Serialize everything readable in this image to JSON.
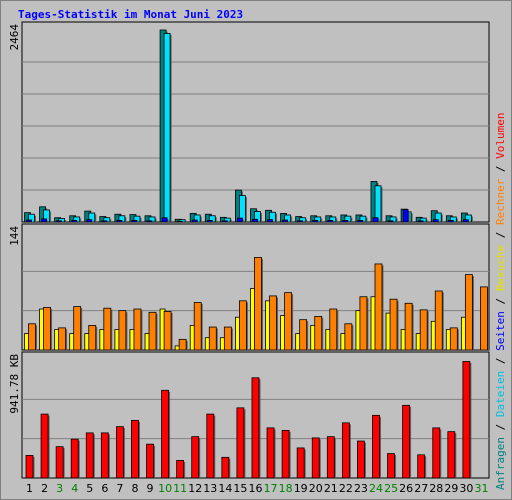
{
  "title": "Tages-Statistik im Monat Juni 2023",
  "colors": {
    "background": "#c0c0c0",
    "grid": "#808080",
    "anfragen": "#008080",
    "dateien": "#00e0ff",
    "seiten": "#0000ff",
    "besuche": "#ffff00",
    "rechner": "#ff8000",
    "volumen": "#ff0000",
    "title": "#0000ff",
    "weekend_label": "#008000",
    "weekday_label": "#000000"
  },
  "legend": {
    "top_right": [
      {
        "text": "Anfragen",
        "color": "#008080"
      },
      {
        "text": " / ",
        "color": "#000000"
      },
      {
        "text": "Dateien",
        "color": "#00c0e0"
      },
      {
        "text": " / ",
        "color": "#000000"
      },
      {
        "text": "Seiten",
        "color": "#0000ff"
      },
      {
        "text": " / ",
        "color": "#000000"
      },
      {
        "text": "Besuche",
        "color": "#e0e000"
      },
      {
        "text": " / ",
        "color": "#000000"
      },
      {
        "text": "Rechner",
        "color": "#ff8000"
      },
      {
        "text": " / ",
        "color": "#000000"
      },
      {
        "text": "Volumen",
        "color": "#ff0000"
      }
    ]
  },
  "chart_data": [
    {
      "type": "bar",
      "panel": "hits",
      "ymax_label": "2464",
      "ymax": 2464,
      "x": [
        1,
        2,
        3,
        4,
        5,
        6,
        7,
        8,
        9,
        10,
        11,
        12,
        13,
        14,
        15,
        16,
        17,
        18,
        19,
        20,
        21,
        22,
        23,
        24,
        25,
        26,
        27,
        28,
        29,
        30,
        31
      ],
      "weekend": [
        3,
        4,
        10,
        11,
        17,
        18,
        24,
        25,
        31
      ],
      "series": [
        {
          "name": "Anfragen",
          "values": [
            120,
            195,
            55,
            80,
            140,
            70,
            100,
            95,
            80,
            2464,
            35,
            110,
            100,
            60,
            410,
            170,
            150,
            110,
            70,
            80,
            80,
            90,
            90,
            520,
            80,
            165,
            60,
            145,
            80,
            115,
            0
          ]
        },
        {
          "name": "Dateien",
          "values": [
            100,
            155,
            45,
            65,
            115,
            55,
            80,
            75,
            65,
            2420,
            30,
            90,
            80,
            50,
            340,
            135,
            125,
            90,
            55,
            65,
            65,
            75,
            75,
            465,
            65,
            130,
            50,
            115,
            65,
            90,
            0
          ]
        },
        {
          "name": "Seiten",
          "values": [
            25,
            40,
            15,
            20,
            30,
            15,
            20,
            20,
            15,
            55,
            10,
            25,
            20,
            15,
            50,
            35,
            30,
            25,
            15,
            20,
            20,
            20,
            20,
            55,
            15,
            160,
            15,
            30,
            20,
            30,
            0
          ]
        }
      ]
    },
    {
      "type": "bar",
      "panel": "visits",
      "ymax_label": "144",
      "ymax": 144,
      "x": [
        1,
        2,
        3,
        4,
        5,
        6,
        7,
        8,
        9,
        10,
        11,
        12,
        13,
        14,
        15,
        16,
        17,
        18,
        19,
        20,
        21,
        22,
        23,
        24,
        25,
        26,
        27,
        28,
        29,
        30,
        31
      ],
      "series": [
        {
          "name": "Besuche",
          "values": [
            20,
            50,
            25,
            20,
            20,
            25,
            25,
            25,
            20,
            50,
            5,
            30,
            15,
            15,
            40,
            75,
            60,
            42,
            20,
            30,
            25,
            20,
            48,
            65,
            45,
            25,
            20,
            35,
            25,
            40,
            0
          ]
        },
        {
          "name": "Rechner",
          "values": [
            32,
            52,
            27,
            53,
            30,
            51,
            48,
            50,
            46,
            47,
            13,
            58,
            28,
            28,
            60,
            113,
            66,
            70,
            37,
            41,
            50,
            32,
            65,
            105,
            62,
            57,
            49,
            72,
            27,
            92,
            77
          ]
        }
      ]
    },
    {
      "type": "bar",
      "panel": "volume",
      "ymax_label": "941.78 KB",
      "ymax": 941.78,
      "x": [
        1,
        2,
        3,
        4,
        5,
        6,
        7,
        8,
        9,
        10,
        11,
        12,
        13,
        14,
        15,
        16,
        17,
        18,
        19,
        20,
        21,
        22,
        23,
        24,
        25,
        26,
        27,
        28,
        29,
        30,
        31
      ],
      "series": [
        {
          "name": "Volumen",
          "values": [
            180,
            510,
            250,
            310,
            360,
            360,
            410,
            460,
            270,
            700,
            140,
            330,
            510,
            165,
            560,
            800,
            400,
            380,
            240,
            320,
            330,
            440,
            295,
            500,
            195,
            580,
            185,
            400,
            370,
            930,
            0
          ]
        }
      ]
    }
  ]
}
